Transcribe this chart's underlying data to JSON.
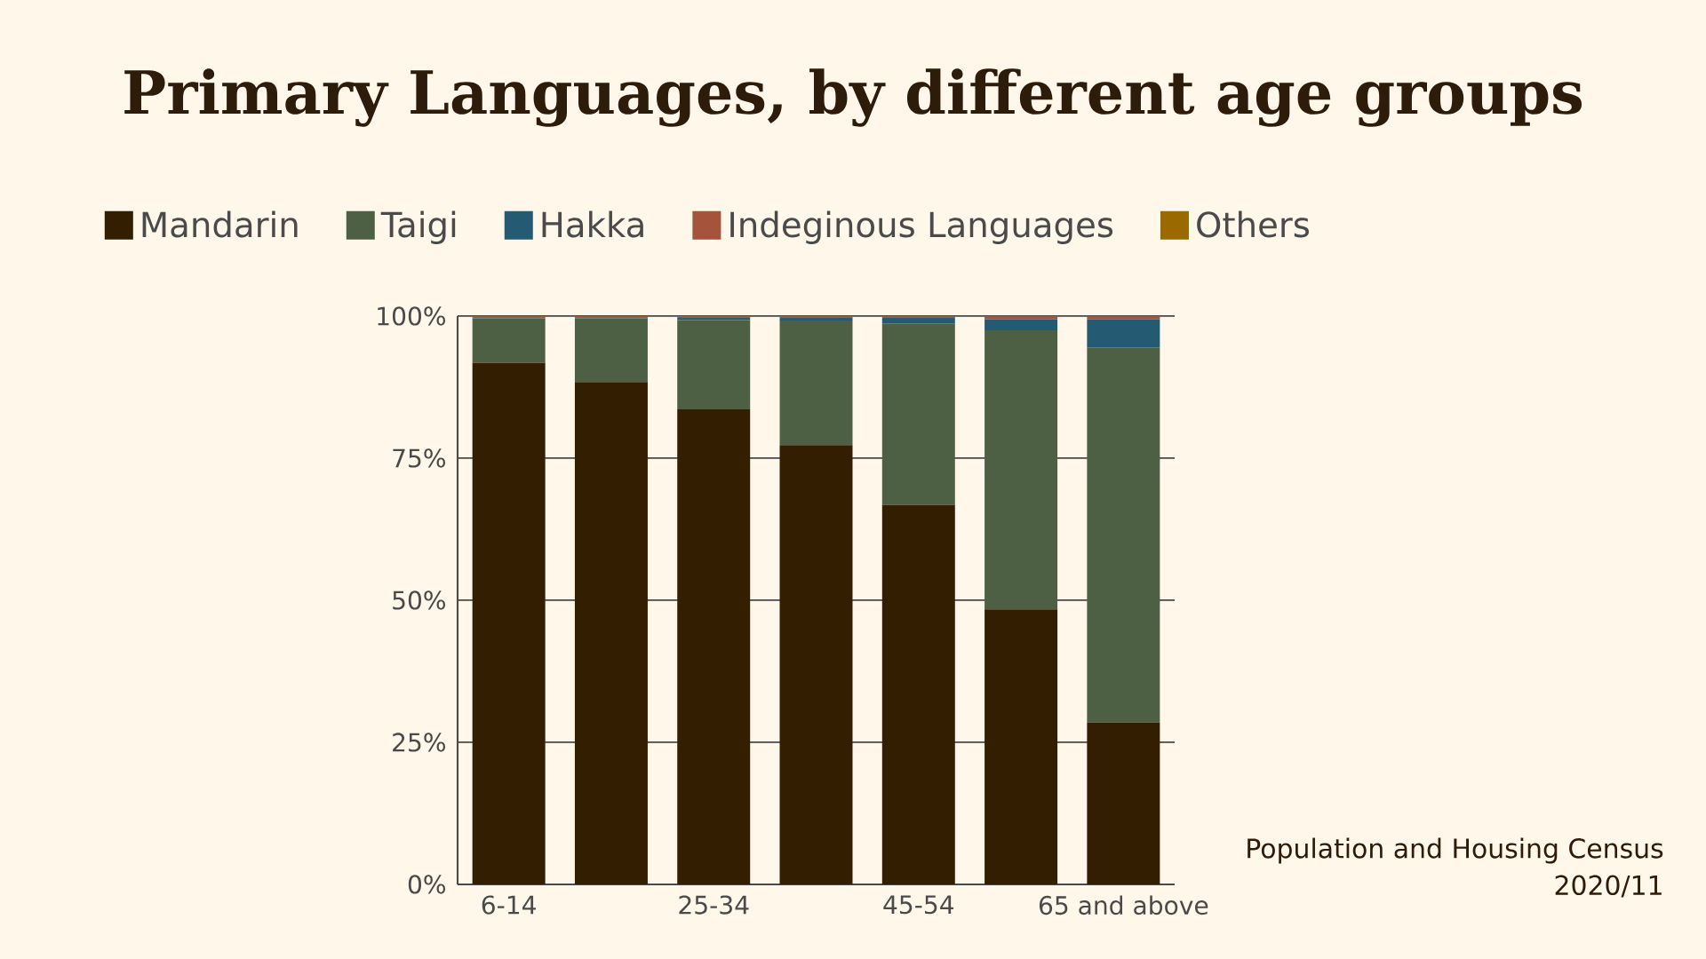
{
  "chart_data": {
    "type": "bar",
    "stacked": true,
    "title": "Primary Languages, by different age groups",
    "categories": [
      "6-14",
      null,
      "25-34",
      null,
      "45-54",
      null,
      "65 and above"
    ],
    "series": [
      {
        "name": "Mandarin",
        "color": "#341e02",
        "values": [
          91.8,
          88.4,
          83.6,
          77.3,
          66.8,
          48.4,
          28.5
        ]
      },
      {
        "name": "Taigi",
        "color": "#4d6043",
        "values": [
          7.8,
          11.2,
          15.7,
          21.9,
          31.9,
          49.1,
          66.0
        ]
      },
      {
        "name": "Hakka",
        "color": "#255a73",
        "values": [
          0.2,
          0.2,
          0.5,
          0.6,
          1.1,
          1.9,
          4.9
        ]
      },
      {
        "name": "Indeginous Languages",
        "color": "#a5533a",
        "values": [
          0.1,
          0.1,
          0.1,
          0.1,
          0.1,
          0.5,
          0.5
        ]
      },
      {
        "name": "Others",
        "color": "#9a6a00",
        "values": [
          0.1,
          0.1,
          0.1,
          0.1,
          0.1,
          null,
          null
        ]
      }
    ],
    "ylim": [
      0,
      100
    ],
    "yticks": [
      {
        "value": 0,
        "label": "0%"
      },
      {
        "value": 25,
        "label": "25%"
      },
      {
        "value": 50,
        "label": "50%"
      },
      {
        "value": 75,
        "label": "75%"
      },
      {
        "value": 100,
        "label": "100%"
      }
    ],
    "grid": "y",
    "legend": "top",
    "annotations": [
      "Population and Housing Census",
      "2020/11"
    ]
  }
}
